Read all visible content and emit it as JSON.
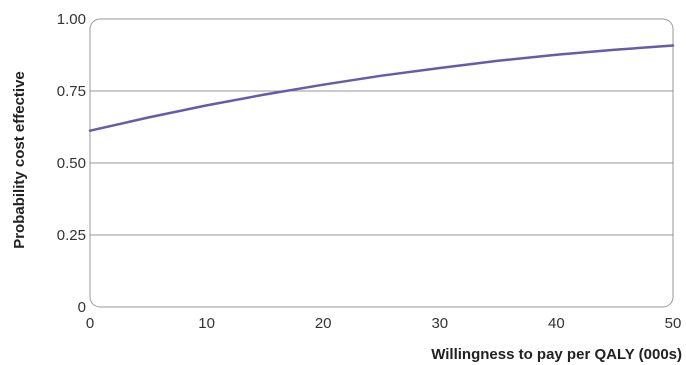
{
  "chart_data": {
    "type": "line",
    "xlabel": "Willingness to pay per QALY (000s)",
    "ylabel": "Probability cost effective",
    "xlim": [
      0,
      50
    ],
    "ylim": [
      0,
      1
    ],
    "x_ticks": [
      0,
      10,
      20,
      30,
      40,
      50
    ],
    "y_ticks": [
      0,
      0.25,
      0.5,
      0.75,
      1.0
    ],
    "x_tick_labels": [
      "0",
      "10",
      "20",
      "30",
      "40",
      "50"
    ],
    "y_tick_labels": [
      "0",
      "0.25",
      "0.50",
      "0.75",
      "1.00"
    ],
    "grid": "horizontal",
    "series": [
      {
        "color": "#6a5aa8",
        "x": [
          0,
          5,
          10,
          15,
          20,
          25,
          30,
          35,
          40,
          45,
          50
        ],
        "y": [
          0.612,
          0.658,
          0.7,
          0.738,
          0.772,
          0.803,
          0.83,
          0.855,
          0.876,
          0.893,
          0.908
        ]
      }
    ]
  }
}
